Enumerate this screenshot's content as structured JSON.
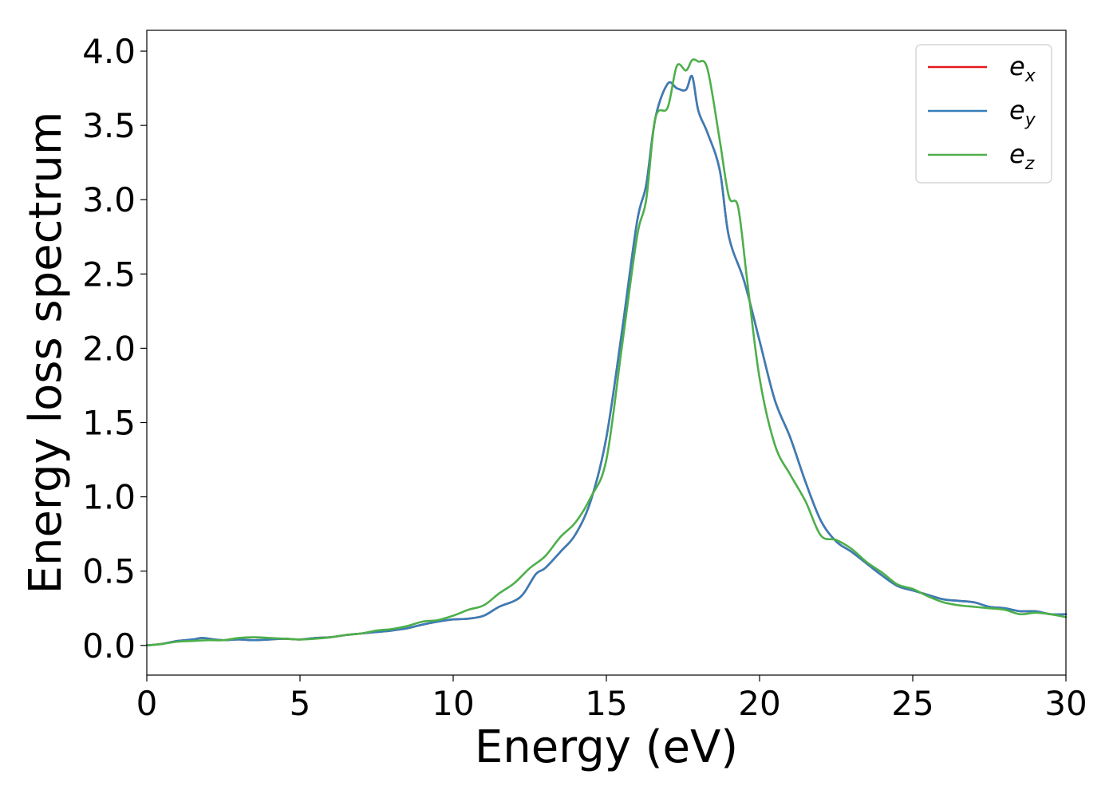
{
  "chart_data": {
    "type": "line",
    "title": "",
    "xlabel": "Energy (eV)",
    "ylabel": "Energy loss spectrum",
    "xlim": [
      0,
      30
    ],
    "ylim": [
      -0.2,
      4.14
    ],
    "xticks": [
      "0",
      "5",
      "10",
      "15",
      "20",
      "25",
      "30"
    ],
    "yticks": [
      "0.0",
      "0.5",
      "1.0",
      "1.5",
      "2.0",
      "2.5",
      "3.0",
      "3.5",
      "4.0"
    ],
    "grid": false,
    "legend_position": "top-right",
    "series": [
      {
        "name": "e_x",
        "legend_base": "e",
        "legend_sub": "x",
        "color": "#e41a1c",
        "x": [
          0,
          0.5,
          1,
          1.5,
          1.8,
          2.2,
          2.5,
          3,
          3.5,
          4,
          4.5,
          5,
          5.5,
          6,
          6.5,
          7,
          7.5,
          8,
          8.5,
          9,
          9.5,
          10,
          10.5,
          11,
          11.5,
          12,
          12.3,
          12.7,
          13,
          13.5,
          14,
          14.5,
          15,
          15.5,
          16,
          16.3,
          16.6,
          17,
          17.3,
          17.6,
          17.8,
          18,
          18.3,
          18.7,
          19,
          19.5,
          20,
          20.5,
          21,
          21.5,
          22,
          22.5,
          23,
          23.5,
          24,
          24.5,
          25,
          25.5,
          26,
          26.5,
          27,
          27.5,
          28,
          28.5,
          29,
          29.5,
          30
        ],
        "y": [
          0,
          0.01,
          0.03,
          0.04,
          0.05,
          0.04,
          0.035,
          0.04,
          0.035,
          0.04,
          0.045,
          0.04,
          0.05,
          0.055,
          0.07,
          0.08,
          0.09,
          0.1,
          0.115,
          0.14,
          0.16,
          0.175,
          0.18,
          0.2,
          0.26,
          0.3,
          0.35,
          0.48,
          0.52,
          0.63,
          0.75,
          0.98,
          1.4,
          2.1,
          2.85,
          3.1,
          3.55,
          3.78,
          3.75,
          3.74,
          3.83,
          3.6,
          3.45,
          3.2,
          2.75,
          2.45,
          2.05,
          1.65,
          1.4,
          1.1,
          0.84,
          0.7,
          0.63,
          0.55,
          0.47,
          0.4,
          0.37,
          0.34,
          0.31,
          0.3,
          0.29,
          0.26,
          0.25,
          0.23,
          0.23,
          0.21,
          0.21
        ]
      },
      {
        "name": "e_y",
        "legend_base": "e",
        "legend_sub": "y",
        "color": "#377eb8",
        "x": [
          0,
          0.5,
          1,
          1.5,
          1.8,
          2.2,
          2.5,
          3,
          3.5,
          4,
          4.5,
          5,
          5.5,
          6,
          6.5,
          7,
          7.5,
          8,
          8.5,
          9,
          9.5,
          10,
          10.5,
          11,
          11.5,
          12,
          12.3,
          12.7,
          13,
          13.5,
          14,
          14.5,
          15,
          15.5,
          16,
          16.3,
          16.6,
          17,
          17.3,
          17.6,
          17.8,
          18,
          18.3,
          18.7,
          19,
          19.5,
          20,
          20.5,
          21,
          21.5,
          22,
          22.5,
          23,
          23.5,
          24,
          24.5,
          25,
          25.5,
          26,
          26.5,
          27,
          27.5,
          28,
          28.5,
          29,
          29.5,
          30
        ],
        "y": [
          0,
          0.01,
          0.03,
          0.04,
          0.05,
          0.04,
          0.035,
          0.04,
          0.035,
          0.04,
          0.045,
          0.04,
          0.05,
          0.055,
          0.07,
          0.08,
          0.09,
          0.1,
          0.115,
          0.14,
          0.16,
          0.175,
          0.18,
          0.2,
          0.26,
          0.3,
          0.35,
          0.48,
          0.52,
          0.63,
          0.75,
          0.98,
          1.4,
          2.1,
          2.85,
          3.1,
          3.55,
          3.78,
          3.75,
          3.74,
          3.83,
          3.6,
          3.45,
          3.2,
          2.75,
          2.45,
          2.05,
          1.65,
          1.4,
          1.1,
          0.84,
          0.7,
          0.63,
          0.55,
          0.47,
          0.4,
          0.37,
          0.34,
          0.31,
          0.3,
          0.29,
          0.26,
          0.25,
          0.23,
          0.23,
          0.21,
          0.21
        ]
      },
      {
        "name": "e_z",
        "legend_base": "e",
        "legend_sub": "z",
        "color": "#4daf4a",
        "x": [
          0,
          0.5,
          1,
          1.5,
          2,
          2.5,
          3,
          3.5,
          4,
          4.5,
          5,
          5.5,
          6,
          6.5,
          7,
          7.5,
          8,
          8.5,
          9,
          9.5,
          10,
          10.5,
          11,
          11.5,
          12,
          12.5,
          13,
          13.5,
          14,
          14.5,
          15,
          15.5,
          16,
          16.3,
          16.6,
          17,
          17.3,
          17.6,
          17.8,
          18,
          18.3,
          18.7,
          19,
          19.3,
          19.6,
          20,
          20.5,
          21,
          21.5,
          22,
          22.5,
          23,
          23.5,
          24,
          24.5,
          25,
          25.5,
          26,
          26.5,
          27,
          27.5,
          28,
          28.5,
          29,
          29.5,
          30
        ],
        "y": [
          0,
          0.01,
          0.025,
          0.03,
          0.035,
          0.035,
          0.05,
          0.055,
          0.05,
          0.045,
          0.04,
          0.045,
          0.055,
          0.07,
          0.08,
          0.1,
          0.11,
          0.13,
          0.16,
          0.17,
          0.2,
          0.24,
          0.27,
          0.35,
          0.42,
          0.52,
          0.6,
          0.73,
          0.83,
          1.0,
          1.25,
          2.0,
          2.75,
          3.0,
          3.55,
          3.62,
          3.9,
          3.87,
          3.94,
          3.93,
          3.88,
          3.4,
          3.02,
          2.95,
          2.45,
          1.8,
          1.35,
          1.15,
          0.97,
          0.74,
          0.71,
          0.65,
          0.56,
          0.49,
          0.41,
          0.38,
          0.33,
          0.29,
          0.27,
          0.26,
          0.25,
          0.24,
          0.21,
          0.22,
          0.21,
          0.19
        ]
      }
    ]
  }
}
